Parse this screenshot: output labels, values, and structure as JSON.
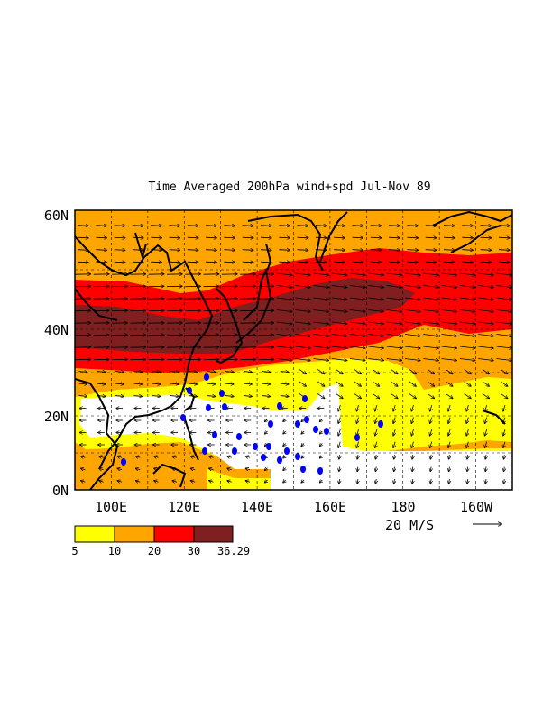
{
  "title": "Time Averaged 200hPa wind+spd  Jul-Nov 89",
  "map": {
    "lat_labels": [
      "60N",
      "40N",
      "20N",
      "0N"
    ],
    "lon_labels": [
      "100E",
      "120E",
      "140E",
      "160E",
      "180",
      "160W"
    ],
    "lat_values": [
      60,
      40,
      20,
      0
    ],
    "lon_values": [
      100,
      120,
      140,
      160,
      180,
      200
    ],
    "lon_range": [
      90,
      210
    ],
    "lat_range": [
      0,
      60
    ],
    "grid": "dashed",
    "vector_scale_label": "20 M/S",
    "vector_scale_value": 20
  },
  "colorbar": {
    "labels": [
      "5",
      "10",
      "20",
      "30",
      "36.29"
    ],
    "colors": [
      "#ffff00",
      "#ffa500",
      "#ff0000",
      "#7f1f1f"
    ]
  },
  "colors": {
    "below_5": "#ffffff",
    "5_10": "#ffff00",
    "10_20": "#ffa500",
    "20_30": "#ff0000",
    "above_30": "#7f1f1f",
    "typhoon_marks": "#0000ff"
  },
  "typhoon_symbol": "tropical-cyclone-icon"
}
